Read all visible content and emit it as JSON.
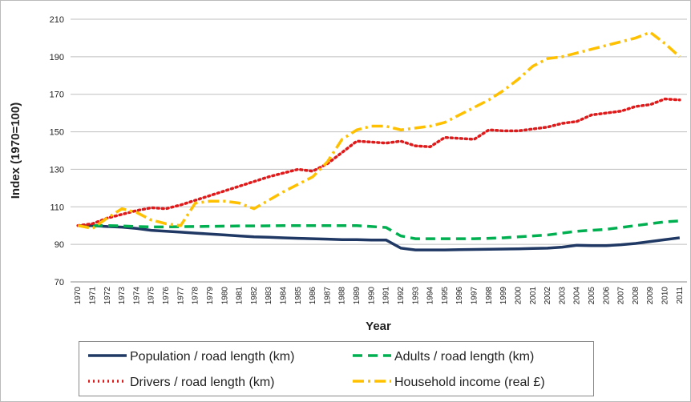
{
  "chart_data": {
    "type": "line",
    "categories": [
      "1970",
      "1971",
      "1972",
      "1973",
      "1974",
      "1975",
      "1976",
      "1977",
      "1978",
      "1979",
      "1980",
      "1981",
      "1982",
      "1983",
      "1984",
      "1985",
      "1986",
      "1987",
      "1988",
      "1989",
      "1990",
      "1991",
      "1992",
      "1993",
      "1994",
      "1995",
      "1996",
      "1997",
      "1998",
      "1999",
      "2000",
      "2001",
      "2002",
      "2003",
      "2004",
      "2005",
      "2006",
      "2007",
      "2008",
      "2009",
      "2010",
      "2011"
    ],
    "x_label": "Year",
    "y_label": "Index (1970=100)",
    "ylim": [
      70,
      210
    ],
    "yticks": [
      70,
      90,
      110,
      130,
      150,
      170,
      190,
      210
    ],
    "grid": true,
    "legend": "bottom",
    "series": [
      {
        "name": "Population / road length (km)",
        "color": "#1f3864",
        "dash": "solid",
        "values": [
          100,
          100,
          99.5,
          99.2,
          98.5,
          97.5,
          97,
          96.5,
          96,
          95.5,
          95,
          94.5,
          94,
          93.8,
          93.5,
          93.2,
          93,
          92.8,
          92.5,
          92.5,
          92.3,
          92.3,
          88,
          87,
          87,
          87,
          87.2,
          87.3,
          87.4,
          87.5,
          87.6,
          87.8,
          88,
          88.5,
          89.5,
          89.3,
          89.3,
          89.8,
          90.5,
          91.5,
          92.5,
          93.5
        ]
      },
      {
        "name": "Adults / road length (km)",
        "color": "#00b050",
        "dash": "dashed",
        "values": [
          100,
          100,
          100,
          99.8,
          99.5,
          99.3,
          99.3,
          99.4,
          99.5,
          99.6,
          99.7,
          99.8,
          99.8,
          99.9,
          100,
          100,
          100,
          100,
          100,
          100,
          99.5,
          99,
          94.5,
          93,
          93,
          93,
          93,
          93,
          93.2,
          93.5,
          94,
          94.5,
          95,
          96,
          97,
          97.5,
          98,
          99,
          100,
          101,
          102,
          102.5
        ]
      },
      {
        "name": "Drivers / road length (km)",
        "color": "#e01a1a",
        "dash": "dotted",
        "values": [
          100,
          101,
          104,
          106,
          108,
          109.5,
          109,
          111,
          113.5,
          116,
          118.5,
          121,
          123.5,
          126,
          128,
          130,
          129,
          133,
          139,
          145,
          144.5,
          144,
          145,
          142.5,
          142,
          147,
          146.5,
          146,
          151,
          150.5,
          150.5,
          151.5,
          152.5,
          154.5,
          155.5,
          159,
          160,
          161,
          163.5,
          164.5,
          167.5,
          167
        ]
      },
      {
        "name": "Household income (real £)",
        "color": "#ffc000",
        "dash": "dashdot",
        "values": [
          100,
          98.5,
          104,
          109,
          107,
          103,
          101,
          100,
          112,
          113,
          113,
          112,
          109,
          113.5,
          118,
          122,
          126,
          134,
          146,
          151,
          153,
          153,
          151,
          152,
          153,
          155,
          159,
          163,
          167,
          172,
          178,
          185,
          189,
          190,
          192,
          194,
          196,
          198,
          200,
          203,
          197,
          190
        ]
      }
    ]
  }
}
